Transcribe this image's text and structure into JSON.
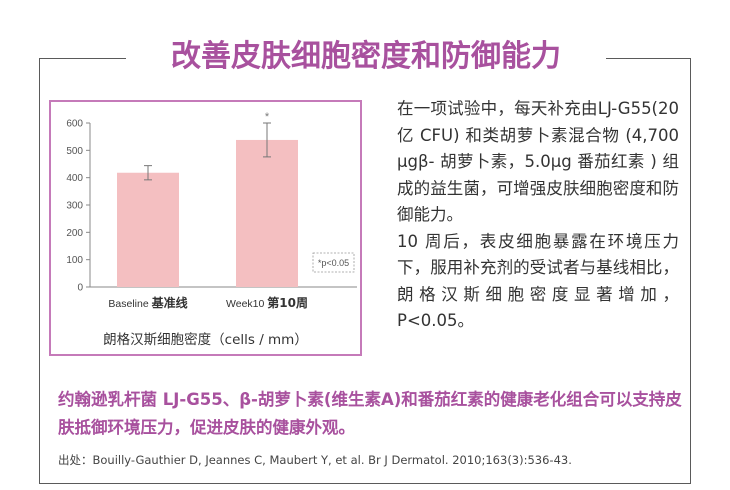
{
  "title": "改善皮肤细胞密度和防御能力",
  "description": {
    "para1": "在一项试验中，每天补充由LJ-G55(20 亿 CFU) 和类胡萝卜素混合物 (4,700 μgβ- 胡萝卜素，5.0μg 番茄红素 ) 组成的益生菌，可增强皮肤细胞密度和防御能力。",
    "para2": "10 周后，表皮细胞暴露在环境压力下，服用补充剂的受试者与基线相比，朗格汉斯细胞密度显著增加，P<0.05。"
  },
  "highlight": "约翰逊乳杆菌 LJ-G55、β-胡萝卜素(维生素A)和番茄红素的健康老化组合可以支持皮肤抵御环境压力，促进皮肤的健康外观。",
  "source": "出处：Bouilly-Gauthier D, Jeannes C, Maubert Y, et al. Br J Dermatol. 2010;163(3):536-43.",
  "chart_data": {
    "type": "bar",
    "caption": "朗格汉斯细胞密度（cells / mm）",
    "categories": [
      {
        "en": "Baseline",
        "zh": "基准线"
      },
      {
        "en": "Week10",
        "zh": "第10周"
      }
    ],
    "values": [
      418,
      538
    ],
    "error": [
      26,
      62
    ],
    "significance": [
      "",
      "*"
    ],
    "ylim": [
      0,
      600
    ],
    "yticks": [
      0,
      100,
      200,
      300,
      400,
      500,
      600
    ],
    "legend_note": "*p<0.05",
    "bar_color": "#f4bfc1",
    "grid": false
  }
}
